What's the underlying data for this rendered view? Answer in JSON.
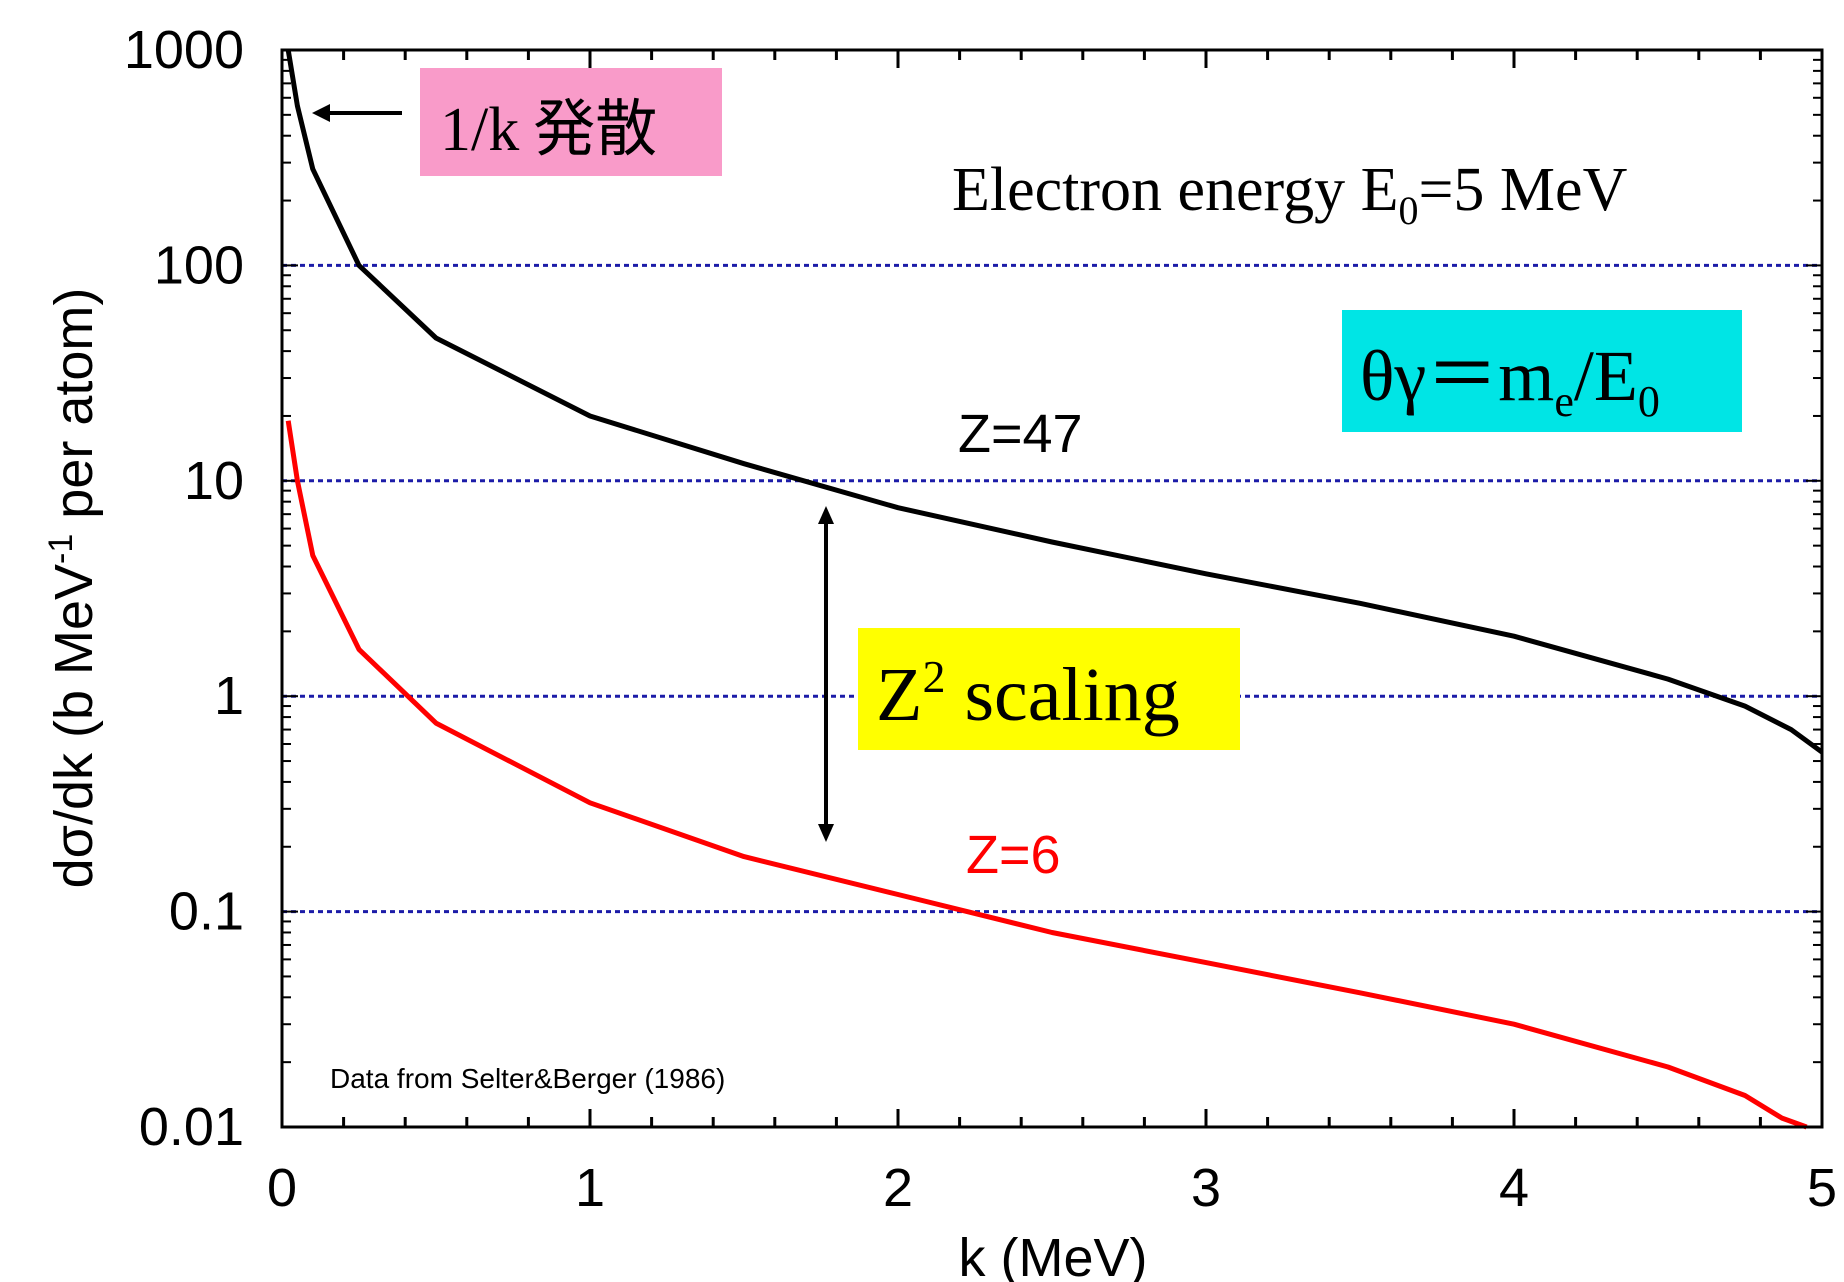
{
  "chart_data": {
    "type": "line",
    "title": "",
    "xlabel": "k (MeV)",
    "ylabel_main": "dσ/dk (b MeV",
    "ylabel_sup": "-1",
    "ylabel_tail": " per atom)",
    "xlim": [
      0,
      5
    ],
    "ylim": [
      0.01,
      1000
    ],
    "yscale": "log",
    "grid": "horizontal dotted at decades",
    "xticks": [
      0,
      1,
      2,
      3,
      4,
      5
    ],
    "xtick_labels": [
      "0",
      "1",
      "2",
      "3",
      "4",
      "5"
    ],
    "yticks": [
      0.01,
      0.1,
      1,
      10,
      100,
      1000
    ],
    "ytick_labels": [
      "0.01",
      "0.1",
      "1",
      "10",
      "100",
      "1000"
    ],
    "series": [
      {
        "name": "Z=47",
        "color": "#000000",
        "x": [
          0.02,
          0.05,
          0.1,
          0.25,
          0.5,
          1.0,
          1.5,
          2.0,
          2.5,
          3.0,
          3.5,
          4.0,
          4.5,
          4.75,
          4.9,
          5.0
        ],
        "y": [
          1000,
          550,
          280,
          100,
          46,
          20,
          12,
          7.5,
          5.2,
          3.7,
          2.7,
          1.9,
          1.2,
          0.9,
          0.7,
          0.55
        ]
      },
      {
        "name": "Z=6",
        "color": "#ff0000",
        "x": [
          0.02,
          0.05,
          0.1,
          0.25,
          0.5,
          1.0,
          1.5,
          2.0,
          2.5,
          3.0,
          3.5,
          4.0,
          4.5,
          4.75,
          4.87,
          4.95
        ],
        "y": [
          19,
          10,
          4.5,
          1.65,
          0.75,
          0.32,
          0.18,
          0.12,
          0.08,
          0.058,
          0.042,
          0.03,
          0.019,
          0.014,
          0.011,
          0.0095
        ]
      }
    ],
    "annotations": {
      "divergence_main": "1/k",
      "divergence_jp": "発散",
      "energy_prefix": "Electron energy E",
      "energy_sub": "0",
      "energy_suffix": "=5 MeV",
      "theta_prefix": "θγ＝m",
      "theta_sub1": "e",
      "theta_mid": "/E",
      "theta_sub2": "0",
      "scaling_main": "Z",
      "scaling_sup": "2",
      "scaling_tail": " scaling",
      "label_z47": "Z=47",
      "label_z6": "Z=6",
      "source": "Data from Selter&Berger (1986)"
    },
    "colors": {
      "divergence_box": "#f99bc9",
      "theta_box": "#00e5e5",
      "scaling_box": "#ffff00",
      "grid": "#1c1ca8"
    }
  }
}
